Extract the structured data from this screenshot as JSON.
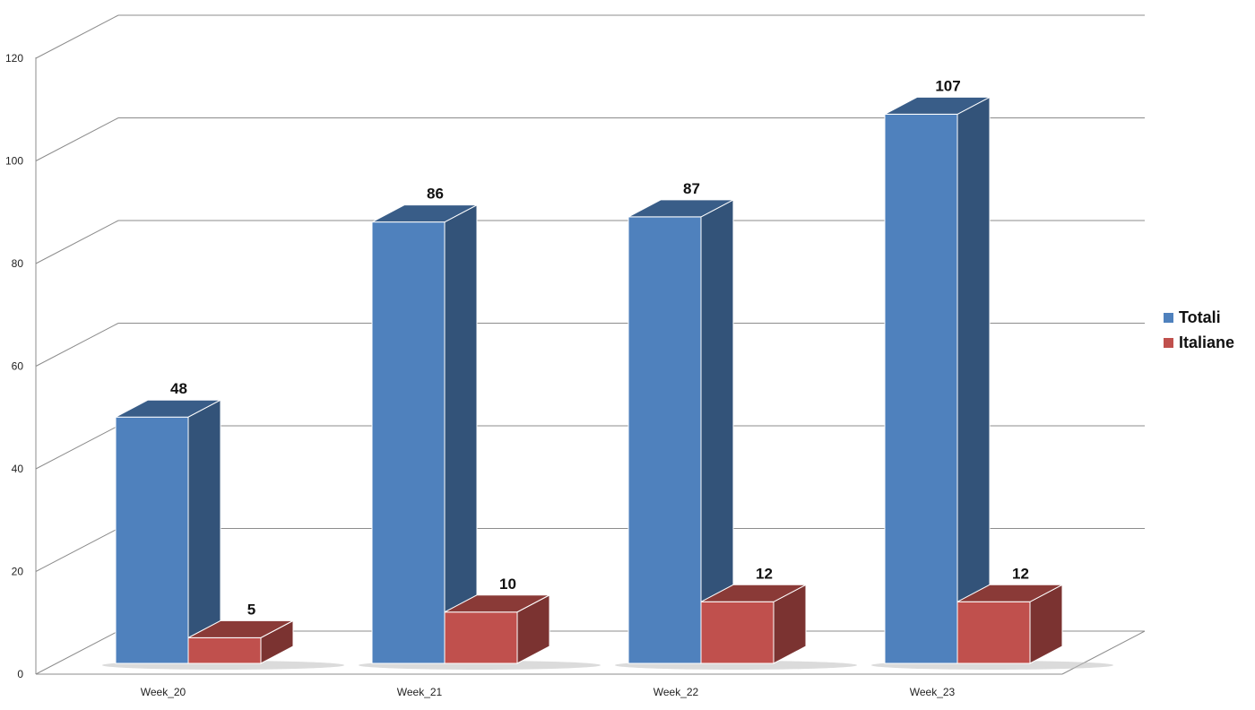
{
  "chart_data": {
    "type": "bar",
    "title": "",
    "xlabel": "",
    "ylabel": "",
    "categories": [
      "Week_20",
      "Week_21",
      "Week_22",
      "Week_23"
    ],
    "series": [
      {
        "name": "Totali",
        "values": [
          48,
          86,
          87,
          107
        ],
        "color": "#4F81BD"
      },
      {
        "name": "Italiane",
        "values": [
          5,
          10,
          12,
          12
        ],
        "color": "#C0504D"
      }
    ],
    "ylim": [
      0,
      120
    ],
    "yticks": [
      "0",
      "20",
      "40",
      "60",
      "80",
      "100",
      "120"
    ],
    "grid": true,
    "legend_position": "right",
    "three_d": true
  }
}
